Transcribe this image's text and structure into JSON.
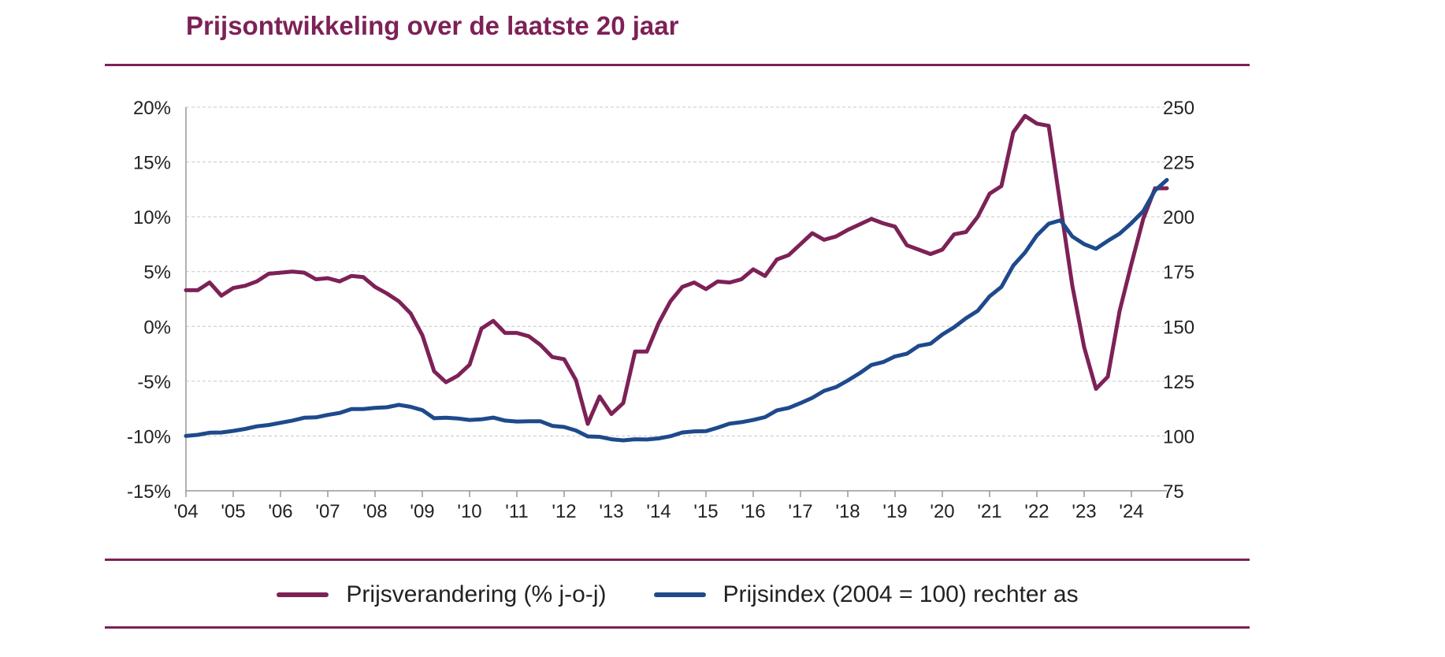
{
  "title": "Prijsontwikkeling over de laatste 20 jaar",
  "colors": {
    "accent": "#7d2157",
    "series_pct": "#7d2157",
    "series_index": "#1e4a8c",
    "grid": "#c8c8c8",
    "axis": "#999999",
    "text": "#222222"
  },
  "legend": {
    "pct_label": "Prijsverandering (% j-o-j)",
    "index_label": "Prijsindex (2004 = 100) rechter as"
  },
  "chart_data": {
    "type": "line",
    "title": "Prijsontwikkeling over de laatste 20 jaar",
    "x_tick_labels": [
      "'04",
      "'05",
      "'06",
      "'07",
      "'08",
      "'09",
      "'10",
      "'11",
      "'12",
      "'13",
      "'14",
      "'15",
      "'16",
      "'17",
      "'18",
      "'19",
      "'20",
      "'21",
      "'22",
      "'23",
      "'24"
    ],
    "x_start": "2004-Q1",
    "x_step": "quarter",
    "y_left": {
      "min": -15,
      "max": 20,
      "step": 5,
      "tick_labels": [
        "-15%",
        "-10%",
        "-5%",
        "0%",
        "5%",
        "10%",
        "15%",
        "20%"
      ]
    },
    "y_right": {
      "min": 75,
      "max": 250,
      "step": 25,
      "tick_labels": [
        "75",
        "100",
        "125",
        "150",
        "175",
        "200",
        "225",
        "250"
      ]
    },
    "grid": true,
    "legend_position": "bottom",
    "series": [
      {
        "name": "Prijsverandering (% j-o-j)",
        "axis": "left",
        "color": "#7d2157",
        "values": [
          3.3,
          3.3,
          4.0,
          2.8,
          3.5,
          3.7,
          4.1,
          4.8,
          4.9,
          5.0,
          4.9,
          4.3,
          4.4,
          4.1,
          4.6,
          4.5,
          3.6,
          3.0,
          2.3,
          1.2,
          -0.8,
          -4.1,
          -5.1,
          -4.5,
          -3.5,
          -0.2,
          0.5,
          -0.6,
          -0.6,
          -0.9,
          -1.7,
          -2.8,
          -3.0,
          -4.9,
          -8.9,
          -6.4,
          -8.0,
          -7.0,
          -2.3,
          -2.3,
          0.3,
          2.3,
          3.6,
          4.0,
          3.4,
          4.1,
          4.0,
          4.3,
          5.2,
          4.6,
          6.1,
          6.5,
          7.5,
          8.5,
          7.9,
          8.2,
          8.8,
          9.3,
          9.8,
          9.4,
          9.1,
          7.4,
          7.0,
          6.6,
          7.0,
          8.4,
          8.6,
          10.0,
          12.1,
          12.8,
          17.7,
          19.2,
          18.5,
          18.3,
          11.0,
          3.7,
          -1.9,
          -5.7,
          -4.6,
          1.4,
          5.7,
          9.8,
          12.6,
          12.6
        ]
      },
      {
        "name": "Prijsindex (2004 = 100) rechter as",
        "axis": "right",
        "color": "#1e4a8c",
        "values": [
          100.0,
          100.5,
          101.5,
          101.6,
          102.3,
          103.2,
          104.4,
          105.0,
          106.0,
          107.0,
          108.3,
          108.5,
          109.6,
          110.5,
          112.3,
          112.3,
          112.8,
          113.1,
          114.2,
          113.3,
          111.8,
          108.1,
          108.3,
          108.0,
          107.3,
          107.6,
          108.4,
          107.0,
          106.6,
          106.7,
          106.7,
          104.6,
          104.1,
          102.5,
          99.8,
          99.6,
          98.5,
          98.0,
          98.5,
          98.4,
          98.9,
          99.9,
          101.6,
          102.1,
          102.2,
          103.8,
          105.6,
          106.3,
          107.3,
          108.6,
          111.7,
          112.8,
          115.0,
          117.4,
          120.6,
          122.3,
          125.3,
          128.6,
          132.4,
          133.7,
          136.3,
          137.5,
          141.1,
          142.1,
          146.3,
          149.6,
          153.7,
          157.1,
          163.7,
          168.0,
          177.7,
          183.7,
          191.5,
          196.8,
          198.4,
          191.0,
          187.5,
          185.4,
          189.0,
          192.3,
          197.1,
          202.5,
          212.0,
          216.8
        ]
      }
    ]
  }
}
